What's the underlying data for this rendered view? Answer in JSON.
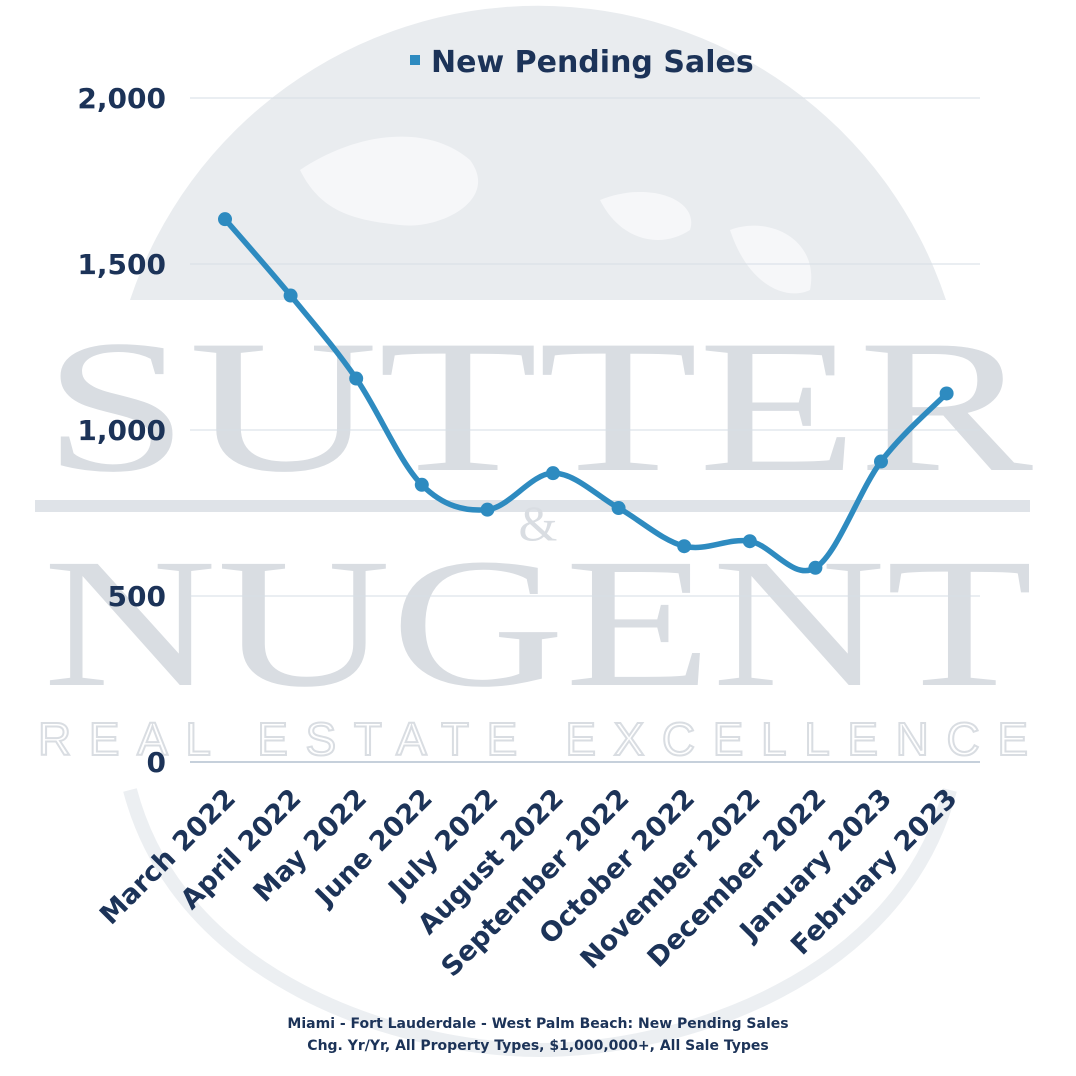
{
  "legend": {
    "label": "New Pending Sales",
    "color": "#2e8bc0"
  },
  "watermark": {
    "line1": "SUTTER",
    "amp": "&",
    "line2": "NUGENT",
    "tagline": "REAL ESTATE EXCELLENCE"
  },
  "caption": {
    "line1": "Miami - Fort Lauderdale - West Palm Beach: New Pending Sales",
    "line2": "Chg. Yr/Yr, All Property Types, $1,000,000+, All Sale Types"
  },
  "chart_data": {
    "type": "line",
    "smooth": true,
    "title": "",
    "xlabel": "",
    "ylabel": "",
    "ylim": [
      0,
      2000
    ],
    "yticks": [
      0,
      500,
      1000,
      1500,
      2000
    ],
    "ytick_labels": [
      "0",
      "500",
      "1,000",
      "1,500",
      "2,000"
    ],
    "grid": true,
    "legend_position": "top",
    "categories": [
      "March 2022",
      "April 2022",
      "May 2022",
      "June 2022",
      "July 2022",
      "August 2022",
      "September 2022",
      "October 2022",
      "November 2022",
      "December 2022",
      "January 2023",
      "February 2023"
    ],
    "series": [
      {
        "name": "New Pending Sales",
        "color": "#2e8bc0",
        "values": [
          1635,
          1405,
          1155,
          835,
          760,
          870,
          765,
          650,
          665,
          585,
          905,
          1110
        ]
      }
    ]
  }
}
